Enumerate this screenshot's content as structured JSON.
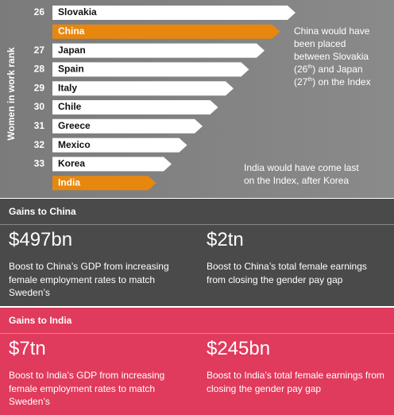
{
  "chart": {
    "axis_label": "Women in work rank",
    "rows": [
      {
        "rank": "26",
        "country": "Slovakia"
      },
      {
        "rank": null,
        "country": "China"
      },
      {
        "rank": "27",
        "country": "Japan"
      },
      {
        "rank": "28",
        "country": "Spain"
      },
      {
        "rank": "29",
        "country": "Italy"
      },
      {
        "rank": "30",
        "country": "Chile"
      },
      {
        "rank": "31",
        "country": "Greece"
      },
      {
        "rank": "32",
        "country": "Mexico"
      },
      {
        "rank": "33",
        "country": "Korea"
      },
      {
        "rank": null,
        "country": "India"
      }
    ],
    "china_note": [
      [
        "China would have"
      ],
      [
        "been placed"
      ],
      [
        "between Slovakia"
      ],
      [
        "(26",
        "th",
        ") and Japan"
      ],
      [
        "(27",
        "th",
        ") on the Index"
      ]
    ],
    "india_note": [
      "India would have come last",
      "on the Index, after Korea"
    ]
  },
  "panels": [
    {
      "title": "Gains to China",
      "items": [
        {
          "amount": "$497bn",
          "text": "Boost to China’s GDP from increasing female employment rates to match Sweden’s"
        },
        {
          "amount": "$2tn",
          "text": "Boost to China’s total female earnings from closing the gender pay gap"
        }
      ]
    },
    {
      "title": "Gains to India",
      "items": [
        {
          "amount": "$7tn",
          "text": "Boost to India’s GDP from increasing female employment rates to match Sweden’s"
        },
        {
          "amount": "$245bn",
          "text": "Boost to India’s total female earnings from closing the gender pay gap"
        }
      ]
    }
  ]
}
